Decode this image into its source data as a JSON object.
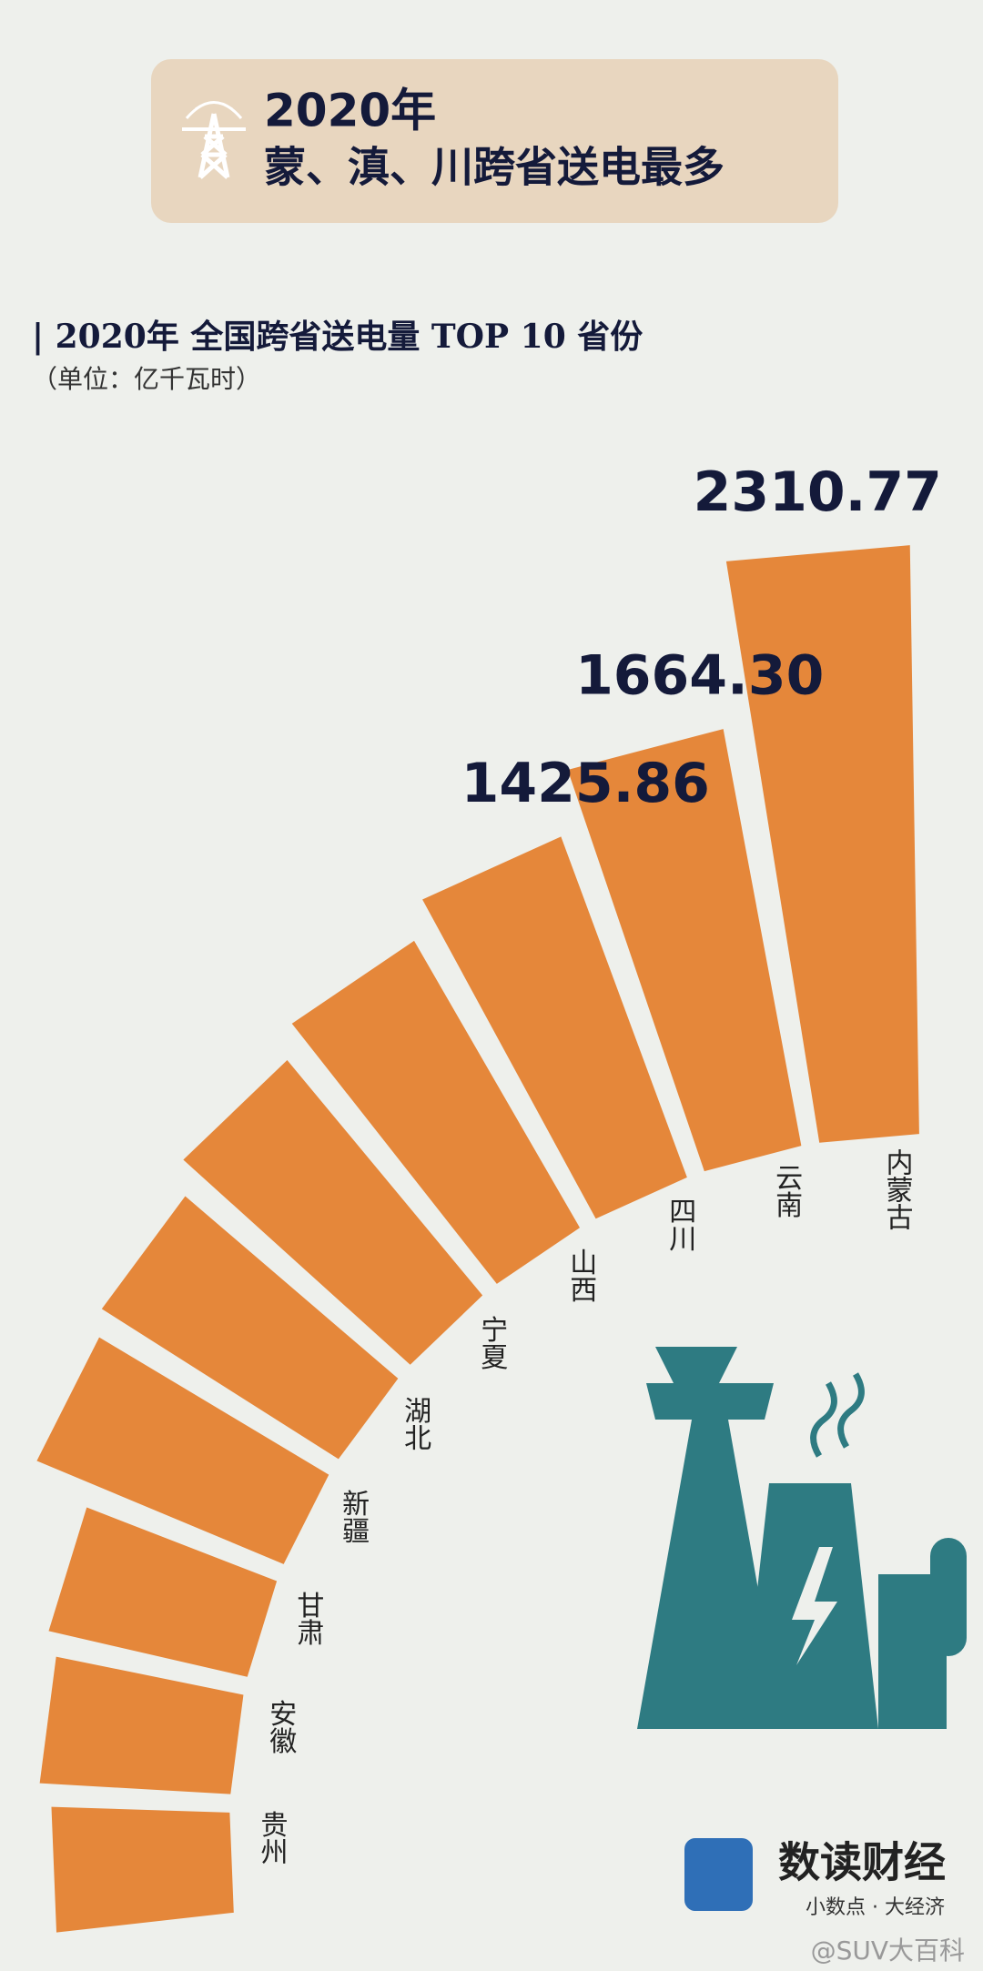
{
  "header": {
    "line1": "2020年",
    "line2": "蒙、滇、川跨省送电最多"
  },
  "chart_data": {
    "type": "radial-bar",
    "title": "| 2020年 全国跨省送电量 TOP 10 省份",
    "subtitle": "（单位：亿千瓦时）",
    "categories": [
      "内蒙古",
      "云南",
      "四川",
      "山西",
      "宁夏",
      "湖北",
      "新疆",
      "甘肃",
      "安徽",
      "贵州"
    ],
    "values": [
      2310.77,
      1664.3,
      1425.86,
      1300,
      1200,
      1100,
      1050,
      800,
      750,
      700
    ],
    "value_labels": [
      "2310.77",
      "1664.30",
      "1425.86",
      null,
      null,
      null,
      null,
      null,
      null,
      null
    ],
    "color": "#e5873a"
  },
  "brand": {
    "name": "数读财经",
    "slogan": "小数点 · 大经济"
  },
  "watermark": "@SUV大百科"
}
